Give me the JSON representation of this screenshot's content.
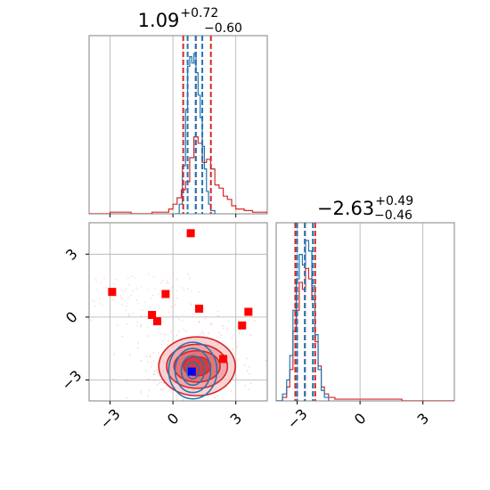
{
  "chart_data": [
    {
      "type": "histogram",
      "panel": "top-left",
      "title_value": "1.09",
      "title_upper": "+0.72",
      "title_lower": "−0.60",
      "xlim": [
        -4,
        4.5
      ],
      "xticks": [
        -3,
        0,
        3
      ],
      "grid": true,
      "series": [
        {
          "color": "#d62728",
          "style": "step",
          "bins": [
            [
              -4.0,
              0
            ],
            [
              -3.0,
              1
            ],
            [
              -2.5,
              1
            ],
            [
              -2.0,
              0
            ],
            [
              -1.0,
              1
            ],
            [
              -0.2,
              3
            ],
            [
              0.0,
              6
            ],
            [
              0.2,
              10
            ],
            [
              0.4,
              15
            ],
            [
              0.6,
              20
            ],
            [
              0.8,
              35
            ],
            [
              1.0,
              48
            ],
            [
              1.2,
              44
            ],
            [
              1.4,
              32
            ],
            [
              1.6,
              34
            ],
            [
              1.8,
              28
            ],
            [
              2.0,
              18
            ],
            [
              2.2,
              16
            ],
            [
              2.4,
              11
            ],
            [
              2.6,
              9
            ],
            [
              2.8,
              5
            ],
            [
              3.0,
              3
            ],
            [
              3.4,
              2
            ],
            [
              3.8,
              1
            ],
            [
              4.5,
              0
            ]
          ],
          "quantiles": [
            0.49,
            1.09,
            1.81
          ]
        },
        {
          "color": "#1f77b4",
          "style": "step",
          "bins": [
            [
              0.1,
              0
            ],
            [
              0.3,
              6
            ],
            [
              0.45,
              30
            ],
            [
              0.6,
              65
            ],
            [
              0.7,
              92
            ],
            [
              0.8,
              98
            ],
            [
              0.9,
              94
            ],
            [
              1.0,
              100
            ],
            [
              1.1,
              88
            ],
            [
              1.2,
              74
            ],
            [
              1.3,
              60
            ],
            [
              1.4,
              42
            ],
            [
              1.5,
              28
            ],
            [
              1.6,
              14
            ],
            [
              1.7,
              6
            ],
            [
              1.8,
              2
            ],
            [
              2.0,
              0
            ]
          ],
          "quantiles": [
            0.7,
            1.09,
            1.4
          ]
        }
      ]
    },
    {
      "type": "scatter_contour",
      "panel": "bottom-left",
      "xlim": [
        -4,
        4.5
      ],
      "ylim": [
        -4,
        4.5
      ],
      "xticks": [
        -3,
        0,
        3
      ],
      "yticks": [
        -3,
        0,
        3
      ],
      "grid": true,
      "red_markers": [
        [
          0.85,
          4.0
        ],
        [
          -2.9,
          1.2
        ],
        [
          -0.35,
          1.1
        ],
        [
          1.25,
          0.4
        ],
        [
          -1.0,
          0.1
        ],
        [
          -0.75,
          -0.2
        ],
        [
          3.6,
          0.25
        ],
        [
          3.3,
          -0.4
        ],
        [
          2.4,
          -2.0
        ]
      ],
      "blue_marker": [
        0.9,
        -2.6
      ],
      "contours": {
        "red_center": [
          1.15,
          -2.35
        ],
        "red_levels": [
          [
            3.65,
            1.4
          ],
          [
            2.9,
            1.05
          ],
          [
            2.2,
            0.75
          ],
          [
            1.3,
            0.45
          ]
        ],
        "blue_center": [
          0.95,
          -2.55
        ],
        "blue_levels": [
          [
            1.15,
            1.35
          ],
          [
            0.85,
            1.05
          ],
          [
            0.55,
            0.7
          ],
          [
            0.3,
            0.4
          ]
        ]
      },
      "colors": {
        "red": "#d62728",
        "blue": "#1f77b4",
        "marker": "#ff0000",
        "truth": "#0000ff"
      }
    },
    {
      "type": "histogram",
      "panel": "bottom-right",
      "title_value": "−2.63",
      "title_upper": "+0.49",
      "title_lower": "−0.46",
      "xlim": [
        -4,
        4.5
      ],
      "xticks": [
        -3,
        0,
        3
      ],
      "grid": true,
      "series": [
        {
          "color": "#d62728",
          "style": "step",
          "bins": [
            [
              -4.0,
              0
            ],
            [
              -3.7,
              2
            ],
            [
              -3.5,
              8
            ],
            [
              -3.35,
              18
            ],
            [
              -3.2,
              40
            ],
            [
              -3.05,
              52
            ],
            [
              -2.9,
              68
            ],
            [
              -2.75,
              64
            ],
            [
              -2.6,
              76
            ],
            [
              -2.45,
              70
            ],
            [
              -2.3,
              58
            ],
            [
              -2.15,
              34
            ],
            [
              -2.0,
              20
            ],
            [
              -1.85,
              8
            ],
            [
              -1.7,
              4
            ],
            [
              -1.5,
              2
            ],
            [
              -1.2,
              1
            ],
            [
              1.5,
              1
            ],
            [
              2.0,
              0
            ],
            [
              4.5,
              0
            ]
          ],
          "quantiles": [
            -3.09,
            -2.63,
            -2.14
          ]
        },
        {
          "color": "#1f77b4",
          "style": "step",
          "bins": [
            [
              -4.0,
              0
            ],
            [
              -3.7,
              4
            ],
            [
              -3.5,
              12
            ],
            [
              -3.35,
              26
            ],
            [
              -3.2,
              52
            ],
            [
              -3.05,
              70
            ],
            [
              -2.9,
              84
            ],
            [
              -2.75,
              78
            ],
            [
              -2.6,
              92
            ],
            [
              -2.45,
              86
            ],
            [
              -2.3,
              66
            ],
            [
              -2.15,
              38
            ],
            [
              -2.0,
              18
            ],
            [
              -1.85,
              6
            ],
            [
              -1.7,
              2
            ],
            [
              -1.5,
              0
            ]
          ],
          "quantiles": [
            -3.0,
            -2.63,
            -2.25
          ]
        }
      ]
    }
  ]
}
